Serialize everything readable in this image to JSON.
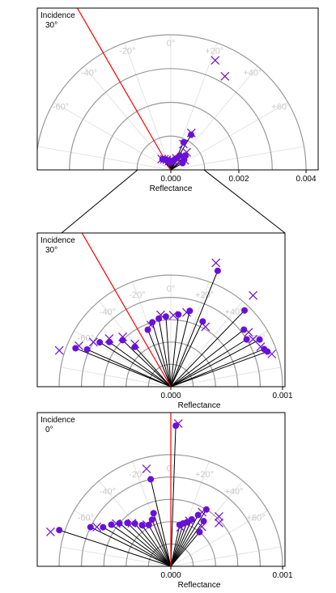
{
  "chart_data": [
    {
      "type": "scatter",
      "subtype": "polar-half",
      "annotation_lines": [
        "Incidence",
        "30°"
      ],
      "xlabel": "Reflectance",
      "r_max": 0.004,
      "tick_labels": [
        "0.000",
        "0.002",
        "0.004"
      ],
      "angle_labels": [
        "0°",
        "-20°",
        "+20°",
        "-40°",
        "+40°",
        "-60°",
        "+60°"
      ],
      "incident_ray_angle_deg": -30,
      "series": [
        {
          "marker": "circle",
          "points": [
            {
              "angle": -38,
              "r": 0.0004
            },
            {
              "angle": -34,
              "r": 0.00038
            },
            {
              "angle": -29,
              "r": 0.00035
            },
            {
              "angle": -25,
              "r": 0.00033
            },
            {
              "angle": -20,
              "r": 0.0003
            },
            {
              "angle": -15,
              "r": 0.00028
            },
            {
              "angle": -8,
              "r": 0.00022
            },
            {
              "angle": 10,
              "r": 0.00025
            },
            {
              "angle": 18,
              "r": 0.0003
            },
            {
              "angle": 22,
              "r": 0.00035
            },
            {
              "angle": 28,
              "r": 0.0004
            },
            {
              "angle": 32,
              "r": 0.0005
            },
            {
              "angle": 25,
              "r": 0.0009
            },
            {
              "angle": 30,
              "r": 0.0012
            },
            {
              "angle": 45,
              "r": 0.0006
            },
            {
              "angle": 52,
              "r": 0.0005
            },
            {
              "angle": 60,
              "r": 0.0004
            }
          ]
        },
        {
          "marker": "cross",
          "points": [
            {
              "angle": -40,
              "r": 0.00042
            },
            {
              "angle": -31,
              "r": 0.00037
            },
            {
              "angle": -22,
              "r": 0.00032
            },
            {
              "angle": -12,
              "r": 0.00026
            },
            {
              "angle": 15,
              "r": 0.00028
            },
            {
              "angle": 25,
              "r": 0.00038
            },
            {
              "angle": 26,
              "r": 0.00085
            },
            {
              "angle": 29,
              "r": 0.00125
            },
            {
              "angle": 22,
              "r": 0.0035
            },
            {
              "angle": 30,
              "r": 0.0032
            },
            {
              "angle": 42,
              "r": 0.0007
            },
            {
              "angle": 55,
              "r": 0.0005
            }
          ]
        }
      ]
    },
    {
      "type": "scatter",
      "subtype": "polar-half",
      "annotation_lines": [
        "Incidence",
        "30°"
      ],
      "xlabel": "Reflectance",
      "r_max": 0.001,
      "tick_labels": [
        "0.000",
        "0.001"
      ],
      "angle_labels": [
        "0°",
        "-20°",
        "+20°",
        "-40°",
        "+40°",
        "-60°",
        "+60°"
      ],
      "incident_ray_angle_deg": -30,
      "series": [
        {
          "marker": "circle",
          "points": [
            {
              "angle": -68,
              "r": 0.00092
            },
            {
              "angle": -66,
              "r": 0.00082
            },
            {
              "angle": -58,
              "r": 0.00075
            },
            {
              "angle": -54,
              "r": 0.00068
            },
            {
              "angle": -46,
              "r": 0.0006
            },
            {
              "angle": -42,
              "r": 0.00048
            },
            {
              "angle": -22,
              "r": 0.00055
            },
            {
              "angle": -16,
              "r": 0.0006
            },
            {
              "angle": -10,
              "r": 0.00062
            },
            {
              "angle": -4,
              "r": 0.00063
            },
            {
              "angle": 6,
              "r": 0.00065
            },
            {
              "angle": 14,
              "r": 0.0007
            },
            {
              "angle": 26,
              "r": 0.00065
            },
            {
              "angle": 22,
              "r": 0.00112
            },
            {
              "angle": 44,
              "r": 0.00095
            },
            {
              "angle": 52,
              "r": 0.00083
            },
            {
              "angle": 58,
              "r": 0.0008
            },
            {
              "angle": 62,
              "r": 0.0009
            },
            {
              "angle": 68,
              "r": 0.0009
            },
            {
              "angle": 70,
              "r": 0.00092
            }
          ]
        },
        {
          "marker": "cross",
          "points": [
            {
              "angle": -72,
              "r": 0.00105
            },
            {
              "angle": -66,
              "r": 0.0009
            },
            {
              "angle": -60,
              "r": 0.0008
            },
            {
              "angle": -52,
              "r": 0.0007
            },
            {
              "angle": -44,
              "r": 0.00062
            },
            {
              "angle": -40,
              "r": 0.0005
            },
            {
              "angle": -18,
              "r": 0.00058
            },
            {
              "angle": -8,
              "r": 0.00065
            },
            {
              "angle": 2,
              "r": 0.00064
            },
            {
              "angle": 12,
              "r": 0.00068
            },
            {
              "angle": 30,
              "r": 0.00062
            },
            {
              "angle": 20,
              "r": 0.00118
            },
            {
              "angle": 42,
              "r": 0.0011
            },
            {
              "angle": 55,
              "r": 0.00085
            },
            {
              "angle": 60,
              "r": 0.00085
            },
            {
              "angle": 66,
              "r": 0.00088
            },
            {
              "angle": 72,
              "r": 0.00095
            }
          ]
        }
      ]
    },
    {
      "type": "scatter",
      "subtype": "polar-half",
      "annotation_lines": [
        "Incidence",
        "0°"
      ],
      "xlabel": "Reflectance",
      "r_max": 0.001,
      "tick_labels": [
        "0.000",
        "0.001"
      ],
      "angle_labels": [
        "0°",
        "-20°",
        "+20°",
        "-40°",
        "+40°",
        "-60°",
        "+60°"
      ],
      "incident_ray_angle_deg": 0,
      "series": [
        {
          "marker": "circle",
          "points": [
            {
              "angle": -72,
              "r": 0.00105
            },
            {
              "angle": -64,
              "r": 0.0008
            },
            {
              "angle": -60,
              "r": 0.0007
            },
            {
              "angle": -55,
              "r": 0.00065
            },
            {
              "angle": -50,
              "r": 0.0006
            },
            {
              "angle": -45,
              "r": 0.00055
            },
            {
              "angle": -40,
              "r": 0.0005
            },
            {
              "angle": -35,
              "r": 0.00045
            },
            {
              "angle": -28,
              "r": 0.00042
            },
            {
              "angle": -22,
              "r": 0.00045
            },
            {
              "angle": -18,
              "r": 0.0005
            },
            {
              "angle": -13,
              "r": 0.0008
            },
            {
              "angle": 2,
              "r": 0.00126
            },
            {
              "angle": 12,
              "r": 0.00038
            },
            {
              "angle": 16,
              "r": 0.0004
            },
            {
              "angle": 20,
              "r": 0.00042
            },
            {
              "angle": 24,
              "r": 0.00046
            },
            {
              "angle": 28,
              "r": 0.00052
            },
            {
              "angle": 32,
              "r": 0.0006
            },
            {
              "angle": 36,
              "r": 0.0005
            },
            {
              "angle": 40,
              "r": 0.0004
            }
          ]
        },
        {
          "marker": "cross",
          "points": [
            {
              "angle": -74,
              "r": 0.00112
            },
            {
              "angle": -62,
              "r": 0.00075
            },
            {
              "angle": -52,
              "r": 0.00062
            },
            {
              "angle": -42,
              "r": 0.00052
            },
            {
              "angle": -30,
              "r": 0.00043
            },
            {
              "angle": -14,
              "r": 0.0009
            },
            {
              "angle": 3,
              "r": 0.00128
            },
            {
              "angle": 14,
              "r": 0.00036
            },
            {
              "angle": 22,
              "r": 0.00044
            },
            {
              "angle": 30,
              "r": 0.00056
            },
            {
              "angle": 38,
              "r": 0.00045
            },
            {
              "angle": 44,
              "r": 0.00062
            },
            {
              "angle": 48,
              "r": 0.00058
            }
          ]
        }
      ]
    }
  ],
  "colors": {
    "marker": "#6a0fd8",
    "incident_ray": "#ff0000",
    "rays": "#000000",
    "grid_arcs": "#999999",
    "grid_spokes": "#dddddd",
    "angle_labels": "#c8c8c8"
  }
}
